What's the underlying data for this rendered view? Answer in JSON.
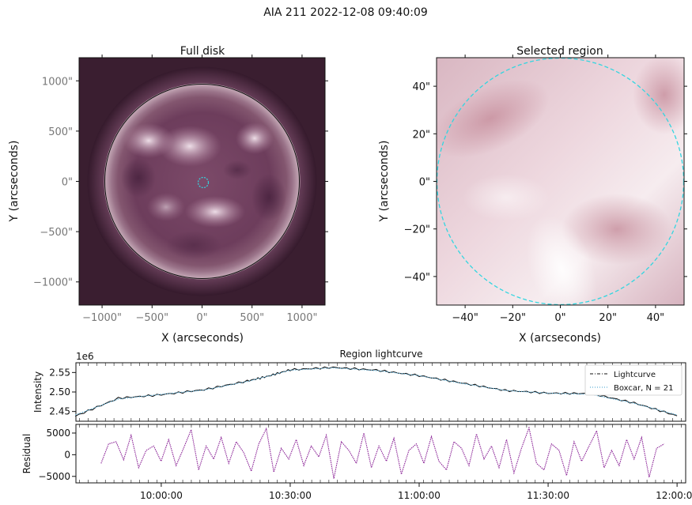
{
  "figure": {
    "title": "AIA 211 2022-12-08 09:40:09"
  },
  "chart_data": [
    {
      "type": "heatmap",
      "title": "Full disk",
      "xlabel": "X (arcseconds)",
      "ylabel": "Y (arcseconds)",
      "xlim": [
        -1230,
        1230
      ],
      "ylim": [
        -1230,
        1230
      ],
      "xticks": [
        -1000,
        -500,
        0,
        500,
        1000
      ],
      "yticks": [
        -1000,
        -500,
        0,
        500,
        1000
      ],
      "xtick_labels": [
        "−1000\"",
        "−500\"",
        "0\"",
        "500\"",
        "1000\""
      ],
      "ytick_labels": [
        "−1000\"",
        "−500\"",
        "0\"",
        "500\"",
        "1000\""
      ],
      "limb_radius": 975,
      "region_center": [
        0,
        0
      ],
      "region_radius": 50,
      "colors": {
        "disk": "#6e3f5e",
        "background": "#3a1e30",
        "limb": "#111111",
        "region": "#33d6e0"
      }
    },
    {
      "type": "heatmap",
      "title": "Selected region",
      "xlabel": "X (arcseconds)",
      "ylabel": "Y (arcseconds)",
      "xlim": [
        -52,
        52
      ],
      "ylim": [
        -52,
        52
      ],
      "xticks": [
        -40,
        -20,
        0,
        20,
        40
      ],
      "yticks": [
        -40,
        -20,
        0,
        20,
        40
      ],
      "xtick_labels": [
        "−40\"",
        "−20\"",
        "0\"",
        "20\"",
        "40\""
      ],
      "ytick_labels": [
        "−40\"",
        "−20\"",
        "0\"",
        "20\"",
        "40\""
      ],
      "region_radius": 50,
      "colors": {
        "field": "#e3c7cf",
        "region": "#33d6e0"
      }
    },
    {
      "type": "line",
      "title": "Region lightcurve",
      "ylabel": "Intensity",
      "y_offset_label": "1e6",
      "xlim": [
        "09:40:09",
        "12:02:00"
      ],
      "ylim": [
        2.425,
        2.575
      ],
      "yticks": [
        2.45,
        2.5,
        2.55
      ],
      "ytick_labels": [
        "2.45",
        "2.50",
        "2.55"
      ],
      "x": [
        "09:40",
        "09:50",
        "10:00",
        "10:10",
        "10:20",
        "10:25",
        "10:30",
        "10:40",
        "10:50",
        "11:00",
        "11:10",
        "11:20",
        "11:30",
        "11:40",
        "11:50",
        "12:00"
      ],
      "series": [
        {
          "name": "Lightcurve",
          "color": "#111111",
          "style": "dash-dot",
          "values": [
            2.438,
            2.484,
            2.493,
            2.506,
            2.528,
            2.541,
            2.557,
            2.563,
            2.556,
            2.542,
            2.523,
            2.504,
            2.497,
            2.496,
            2.472,
            2.439
          ]
        },
        {
          "name": "Boxcar, N = 21",
          "color": "#5fb0d8",
          "style": "dotted",
          "values": [
            2.441,
            2.482,
            2.494,
            2.505,
            2.527,
            2.541,
            2.556,
            2.562,
            2.555,
            2.542,
            2.522,
            2.504,
            2.497,
            2.494,
            2.471,
            2.441
          ]
        }
      ],
      "legend": "right"
    },
    {
      "type": "line",
      "ylabel": "Residual",
      "xlim": [
        "09:40:09",
        "12:02:00"
      ],
      "ylim": [
        -6500,
        7000
      ],
      "yticks": [
        -5000,
        0,
        5000
      ],
      "ytick_labels": [
        "−5000",
        "0",
        "5000"
      ],
      "xticks": [
        "10:00:00",
        "10:30:00",
        "11:00:00",
        "11:30:00",
        "12:00:00"
      ],
      "series": [
        {
          "name": "Residual",
          "color": "#8a2296",
          "style": "dotted",
          "values": [
            -2000,
            2500,
            3000,
            -1200,
            4500,
            -3000,
            1000,
            2000,
            -1500,
            3500,
            -2500,
            1500,
            5800,
            -3500,
            2000,
            -1000,
            4000,
            -2000,
            3000,
            500,
            -3800,
            2500,
            6000,
            -4000,
            1500,
            -1000,
            3500,
            -2500,
            2000,
            -500,
            4500,
            -5500,
            3000,
            1000,
            -2000,
            5000,
            -3000,
            2000,
            -1500,
            3800,
            -4500,
            1000,
            2500,
            -2000,
            4200,
            -1500,
            -3500,
            3000,
            1500,
            -2500,
            4800,
            -1000,
            2000,
            -3000,
            3500,
            -4200,
            1500,
            6200,
            -2000,
            -3500,
            2500,
            1000,
            -4800,
            3000,
            -1500,
            2000,
            5500,
            -3000,
            1000,
            -2500,
            3500,
            -1000,
            4000,
            -5200,
            1500,
            2500
          ]
        }
      ]
    }
  ]
}
